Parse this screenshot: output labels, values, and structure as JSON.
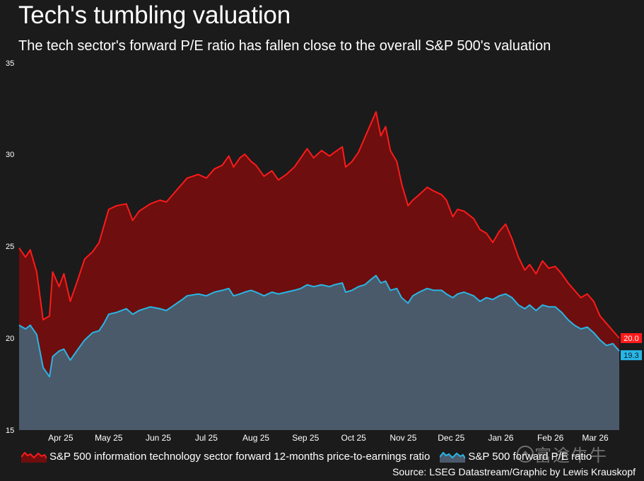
{
  "page": {
    "title": "Tech's tumbling valuation",
    "subtitle": "The tech sector's forward P/E ratio has fallen close to the overall S&P 500's valuation",
    "source": "Source: LSEG Datastream/Graphic by Lewis Krauskopf",
    "watermark": "富途牛牛"
  },
  "colors": {
    "background": "#1b1b1b",
    "tech_line": "#ff1a1a",
    "tech_fill": "#6e0e0e",
    "sp500_line": "#28b6e6",
    "sp500_fill": "#4a5a6b"
  },
  "chart_data": {
    "type": "area",
    "title": "Tech's tumbling valuation",
    "subtitle": "The tech sector's forward P/E ratio has fallen close to the overall S&P 500's valuation",
    "x_range": [
      "2025-03-20",
      "2026-03-30"
    ],
    "x_ticks": [
      {
        "label": "Apr 25",
        "date": "2025-04-15"
      },
      {
        "label": "May 25",
        "date": "2025-05-15"
      },
      {
        "label": "Jun 25",
        "date": "2025-06-15"
      },
      {
        "label": "Jul 25",
        "date": "2025-07-15"
      },
      {
        "label": "Aug 25",
        "date": "2025-08-15"
      },
      {
        "label": "Sep 25",
        "date": "2025-09-15"
      },
      {
        "label": "Oct 25",
        "date": "2025-10-15"
      },
      {
        "label": "Nov 25",
        "date": "2025-11-15"
      },
      {
        "label": "Dec 25",
        "date": "2025-12-15"
      },
      {
        "label": "Jan 26",
        "date": "2026-01-15"
      },
      {
        "label": "Feb 26",
        "date": "2026-02-15"
      },
      {
        "label": "Mar 26",
        "date": "2026-03-15"
      }
    ],
    "ylim": [
      15,
      35
    ],
    "y_ticks": [
      "15",
      "20",
      "25",
      "30",
      "35"
    ],
    "grid": false,
    "legend_position": "bottom",
    "series": [
      {
        "name": "S&P 500 information technology sector forward 12-months price-to-earnings ratio",
        "last_label": "20.0",
        "points": [
          [
            "2025-03-20",
            24.9
          ],
          [
            "2025-03-24",
            24.4
          ],
          [
            "2025-03-27",
            24.8
          ],
          [
            "2025-03-31",
            23.6
          ],
          [
            "2025-04-04",
            21.0
          ],
          [
            "2025-04-08",
            21.2
          ],
          [
            "2025-04-10",
            23.6
          ],
          [
            "2025-04-14",
            22.8
          ],
          [
            "2025-04-17",
            23.5
          ],
          [
            "2025-04-21",
            22.0
          ],
          [
            "2025-04-25",
            23.0
          ],
          [
            "2025-04-30",
            24.3
          ],
          [
            "2025-05-05",
            24.7
          ],
          [
            "2025-05-09",
            25.2
          ],
          [
            "2025-05-12",
            26.1
          ],
          [
            "2025-05-15",
            27.0
          ],
          [
            "2025-05-20",
            27.2
          ],
          [
            "2025-05-26",
            27.3
          ],
          [
            "2025-05-30",
            26.4
          ],
          [
            "2025-06-03",
            26.9
          ],
          [
            "2025-06-10",
            27.3
          ],
          [
            "2025-06-16",
            27.5
          ],
          [
            "2025-06-20",
            27.4
          ],
          [
            "2025-06-25",
            27.9
          ],
          [
            "2025-06-30",
            28.4
          ],
          [
            "2025-07-03",
            28.7
          ],
          [
            "2025-07-10",
            28.9
          ],
          [
            "2025-07-15",
            28.7
          ],
          [
            "2025-07-20",
            29.2
          ],
          [
            "2025-07-25",
            29.4
          ],
          [
            "2025-07-29",
            29.9
          ],
          [
            "2025-08-01",
            29.3
          ],
          [
            "2025-08-05",
            29.8
          ],
          [
            "2025-08-08",
            30.0
          ],
          [
            "2025-08-12",
            29.6
          ],
          [
            "2025-08-15",
            29.4
          ],
          [
            "2025-08-20",
            28.8
          ],
          [
            "2025-08-25",
            29.1
          ],
          [
            "2025-08-29",
            28.6
          ],
          [
            "2025-09-03",
            28.9
          ],
          [
            "2025-09-08",
            29.3
          ],
          [
            "2025-09-12",
            29.8
          ],
          [
            "2025-09-16",
            30.3
          ],
          [
            "2025-09-20",
            29.8
          ],
          [
            "2025-09-25",
            30.2
          ],
          [
            "2025-09-30",
            29.9
          ],
          [
            "2025-10-03",
            30.1
          ],
          [
            "2025-10-08",
            30.4
          ],
          [
            "2025-10-10",
            29.3
          ],
          [
            "2025-10-14",
            29.6
          ],
          [
            "2025-10-18",
            30.1
          ],
          [
            "2025-10-22",
            30.9
          ],
          [
            "2025-10-26",
            31.7
          ],
          [
            "2025-10-29",
            32.3
          ],
          [
            "2025-11-01",
            31.0
          ],
          [
            "2025-11-04",
            31.5
          ],
          [
            "2025-11-07",
            30.2
          ],
          [
            "2025-11-11",
            29.6
          ],
          [
            "2025-11-14",
            28.4
          ],
          [
            "2025-11-18",
            27.2
          ],
          [
            "2025-11-21",
            27.5
          ],
          [
            "2025-11-25",
            27.8
          ],
          [
            "2025-11-30",
            28.2
          ],
          [
            "2025-12-04",
            28.0
          ],
          [
            "2025-12-09",
            27.8
          ],
          [
            "2025-12-12",
            27.5
          ],
          [
            "2025-12-16",
            26.6
          ],
          [
            "2025-12-19",
            27.0
          ],
          [
            "2025-12-23",
            26.9
          ],
          [
            "2025-12-29",
            26.5
          ],
          [
            "2026-01-02",
            25.9
          ],
          [
            "2026-01-06",
            25.7
          ],
          [
            "2026-01-10",
            25.2
          ],
          [
            "2026-01-14",
            25.8
          ],
          [
            "2026-01-18",
            26.2
          ],
          [
            "2026-01-22",
            25.4
          ],
          [
            "2026-01-26",
            24.4
          ],
          [
            "2026-01-30",
            23.7
          ],
          [
            "2026-02-02",
            24.0
          ],
          [
            "2026-02-06",
            23.5
          ],
          [
            "2026-02-10",
            24.2
          ],
          [
            "2026-02-14",
            23.8
          ],
          [
            "2026-02-18",
            23.9
          ],
          [
            "2026-02-22",
            23.5
          ],
          [
            "2026-02-26",
            23.0
          ],
          [
            "2026-03-02",
            22.6
          ],
          [
            "2026-03-06",
            22.2
          ],
          [
            "2026-03-10",
            22.4
          ],
          [
            "2026-03-14",
            22.0
          ],
          [
            "2026-03-18",
            21.2
          ],
          [
            "2026-03-22",
            20.8
          ],
          [
            "2026-03-26",
            20.4
          ],
          [
            "2026-03-30",
            20.0
          ]
        ]
      },
      {
        "name": "S&P 500 forward P/E ratio",
        "last_label": "19.3",
        "points": [
          [
            "2025-03-20",
            20.7
          ],
          [
            "2025-03-24",
            20.5
          ],
          [
            "2025-03-27",
            20.7
          ],
          [
            "2025-03-31",
            20.2
          ],
          [
            "2025-04-04",
            18.4
          ],
          [
            "2025-04-08",
            17.9
          ],
          [
            "2025-04-10",
            19.0
          ],
          [
            "2025-04-14",
            19.3
          ],
          [
            "2025-04-17",
            19.4
          ],
          [
            "2025-04-21",
            18.8
          ],
          [
            "2025-04-25",
            19.3
          ],
          [
            "2025-04-30",
            19.9
          ],
          [
            "2025-05-05",
            20.3
          ],
          [
            "2025-05-09",
            20.4
          ],
          [
            "2025-05-12",
            20.8
          ],
          [
            "2025-05-15",
            21.3
          ],
          [
            "2025-05-20",
            21.4
          ],
          [
            "2025-05-26",
            21.6
          ],
          [
            "2025-05-30",
            21.3
          ],
          [
            "2025-06-03",
            21.5
          ],
          [
            "2025-06-10",
            21.7
          ],
          [
            "2025-06-16",
            21.6
          ],
          [
            "2025-06-20",
            21.5
          ],
          [
            "2025-06-25",
            21.8
          ],
          [
            "2025-06-30",
            22.1
          ],
          [
            "2025-07-03",
            22.3
          ],
          [
            "2025-07-10",
            22.4
          ],
          [
            "2025-07-15",
            22.3
          ],
          [
            "2025-07-20",
            22.5
          ],
          [
            "2025-07-25",
            22.6
          ],
          [
            "2025-07-29",
            22.7
          ],
          [
            "2025-08-01",
            22.3
          ],
          [
            "2025-08-05",
            22.4
          ],
          [
            "2025-08-08",
            22.5
          ],
          [
            "2025-08-12",
            22.6
          ],
          [
            "2025-08-15",
            22.5
          ],
          [
            "2025-08-20",
            22.3
          ],
          [
            "2025-08-25",
            22.5
          ],
          [
            "2025-08-29",
            22.4
          ],
          [
            "2025-09-03",
            22.5
          ],
          [
            "2025-09-08",
            22.6
          ],
          [
            "2025-09-12",
            22.7
          ],
          [
            "2025-09-16",
            22.9
          ],
          [
            "2025-09-20",
            22.8
          ],
          [
            "2025-09-25",
            22.9
          ],
          [
            "2025-09-30",
            22.8
          ],
          [
            "2025-10-03",
            22.9
          ],
          [
            "2025-10-08",
            23.0
          ],
          [
            "2025-10-10",
            22.5
          ],
          [
            "2025-10-14",
            22.6
          ],
          [
            "2025-10-18",
            22.8
          ],
          [
            "2025-10-22",
            22.9
          ],
          [
            "2025-10-26",
            23.2
          ],
          [
            "2025-10-29",
            23.4
          ],
          [
            "2025-11-01",
            23.0
          ],
          [
            "2025-11-04",
            23.1
          ],
          [
            "2025-11-07",
            22.6
          ],
          [
            "2025-11-11",
            22.7
          ],
          [
            "2025-11-14",
            22.2
          ],
          [
            "2025-11-18",
            21.9
          ],
          [
            "2025-11-21",
            22.3
          ],
          [
            "2025-11-25",
            22.5
          ],
          [
            "2025-11-30",
            22.7
          ],
          [
            "2025-12-04",
            22.6
          ],
          [
            "2025-12-09",
            22.6
          ],
          [
            "2025-12-12",
            22.4
          ],
          [
            "2025-12-16",
            22.2
          ],
          [
            "2025-12-19",
            22.4
          ],
          [
            "2025-12-23",
            22.5
          ],
          [
            "2025-12-29",
            22.3
          ],
          [
            "2026-01-02",
            22.0
          ],
          [
            "2026-01-06",
            22.2
          ],
          [
            "2026-01-10",
            22.1
          ],
          [
            "2026-01-14",
            22.3
          ],
          [
            "2026-01-18",
            22.4
          ],
          [
            "2026-01-22",
            22.2
          ],
          [
            "2026-01-26",
            21.8
          ],
          [
            "2026-01-30",
            21.6
          ],
          [
            "2026-02-02",
            21.8
          ],
          [
            "2026-02-06",
            21.5
          ],
          [
            "2026-02-10",
            21.8
          ],
          [
            "2026-02-14",
            21.7
          ],
          [
            "2026-02-18",
            21.7
          ],
          [
            "2026-02-22",
            21.4
          ],
          [
            "2026-02-26",
            21.0
          ],
          [
            "2026-03-02",
            20.7
          ],
          [
            "2026-03-06",
            20.5
          ],
          [
            "2026-03-10",
            20.6
          ],
          [
            "2026-03-14",
            20.3
          ],
          [
            "2026-03-18",
            19.9
          ],
          [
            "2026-03-22",
            19.6
          ],
          [
            "2026-03-26",
            19.7
          ],
          [
            "2026-03-30",
            19.3
          ]
        ]
      }
    ],
    "legend": [
      "S&P 500 information technology sector forward 12-months price-to-earnings ratio",
      "S&P 500 forward P/E ratio"
    ]
  }
}
